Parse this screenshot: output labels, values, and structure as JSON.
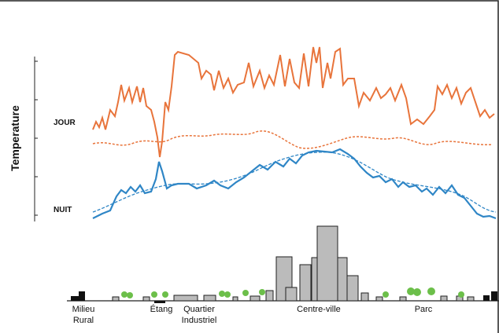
{
  "y_axis": {
    "label": "Temperature"
  },
  "curve_labels": {
    "day": "JOUR",
    "night": "NUIT"
  },
  "zones": [
    {
      "lines": [
        "Milieu",
        "Rural"
      ]
    },
    {
      "lines": [
        "Étang"
      ]
    },
    {
      "lines": [
        "Quartier",
        "Industriel"
      ]
    },
    {
      "lines": [
        "Centre-ville"
      ]
    },
    {
      "lines": [
        "Parc"
      ]
    }
  ]
}
